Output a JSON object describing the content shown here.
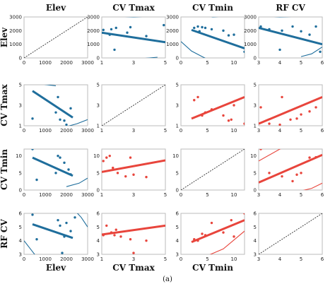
{
  "variables": [
    "Elev",
    "CV Tmax",
    "CV Tmin",
    "RF CV"
  ],
  "caption": "(a)",
  "colors": {
    "blue": "#1f6e9c",
    "red": "#e8453c",
    "diagonal": "#333333"
  },
  "axes": {
    "Elev": {
      "range": [
        0,
        3000
      ],
      "ticks": [
        0,
        1000,
        2000,
        3000
      ]
    },
    "CV Tmax": {
      "range": [
        1,
        5
      ],
      "ticks": [
        1,
        3,
        5
      ]
    },
    "CV Tmin": {
      "range": [
        0,
        12
      ],
      "ticks": [
        0,
        5,
        10
      ]
    },
    "RF CV": {
      "range": [
        3,
        6
      ],
      "ticks": [
        3,
        4,
        5,
        6
      ]
    }
  },
  "chart_data": {
    "type": "scatter",
    "layout": "scatterplot-matrix",
    "panels": [
      {
        "row": 0,
        "col": 0,
        "kind": "diagonal"
      },
      {
        "row": 0,
        "col": 1,
        "color": "blue",
        "points": [
          [
            1.1,
            2050
          ],
          [
            1.5,
            1700
          ],
          [
            1.6,
            2100
          ],
          [
            1.9,
            2200
          ],
          [
            2.6,
            1850
          ],
          [
            2.8,
            2250
          ],
          [
            3.8,
            1600
          ],
          [
            4.9,
            2400
          ],
          [
            1.8,
            600
          ]
        ],
        "fit": [
          [
            1,
            1850
          ],
          [
            5,
            1150
          ]
        ],
        "band_upper": [
          [
            1,
            3150
          ],
          [
            2,
            3050
          ],
          [
            3,
            3000
          ],
          [
            4,
            3050
          ],
          [
            5,
            3150
          ]
        ],
        "band_lower": [
          [
            2.5,
            -150
          ],
          [
            3.5,
            -50
          ],
          [
            4.5,
            50
          ]
        ]
      },
      {
        "row": 0,
        "col": 2,
        "color": "blue",
        "points": [
          [
            2.5,
            2200
          ],
          [
            3.2,
            2300
          ],
          [
            4,
            2250
          ],
          [
            4.6,
            2200
          ],
          [
            5.8,
            2100
          ],
          [
            8,
            2000
          ],
          [
            9,
            1650
          ],
          [
            10,
            1700
          ],
          [
            12,
            450
          ],
          [
            3.5,
            1950
          ]
        ],
        "fit": [
          [
            2,
            2050
          ],
          [
            12,
            700
          ]
        ],
        "band_upper": [
          [
            4,
            3200
          ],
          [
            6,
            3000
          ],
          [
            8,
            3050
          ],
          [
            10,
            3200
          ]
        ],
        "band_lower": [
          [
            0,
            1200
          ],
          [
            2,
            500
          ],
          [
            4,
            100
          ],
          [
            5,
            -100
          ]
        ]
      },
      {
        "row": 0,
        "col": 3,
        "color": "blue",
        "points": [
          [
            3.1,
            2300
          ],
          [
            3.5,
            2100
          ],
          [
            4.1,
            2000
          ],
          [
            4.6,
            2300
          ],
          [
            5,
            1950
          ],
          [
            5.4,
            1700
          ],
          [
            5.7,
            2300
          ],
          [
            4,
            600
          ],
          [
            5.9,
            450
          ]
        ],
        "fit": [
          [
            3,
            2200
          ],
          [
            6,
            1000
          ]
        ],
        "band_upper": [
          [
            3,
            3100
          ],
          [
            4,
            3000
          ],
          [
            5,
            3050
          ],
          [
            6,
            3200
          ]
        ],
        "band_lower": [
          [
            5,
            100
          ],
          [
            5.5,
            300
          ],
          [
            6,
            800
          ]
        ]
      },
      {
        "row": 1,
        "col": 0,
        "color": "blue",
        "points": [
          [
            400,
            1.7
          ],
          [
            1600,
            3.8
          ],
          [
            1700,
            1.6
          ],
          [
            1900,
            1.5
          ],
          [
            2200,
            2.7
          ],
          [
            2000,
            1.1
          ],
          [
            1500,
            2.3
          ]
        ],
        "fit": [
          [
            400,
            4.4
          ],
          [
            2300,
            1.8
          ]
        ],
        "band_upper": [
          [
            0,
            5.6
          ],
          [
            700,
            5.1
          ],
          [
            1500,
            4.9
          ]
        ],
        "band_lower": [
          [
            1800,
            0.8
          ],
          [
            2500,
            1.2
          ],
          [
            3000,
            1.6
          ]
        ]
      },
      {
        "row": 1,
        "col": 1,
        "kind": "diagonal"
      },
      {
        "row": 1,
        "col": 2,
        "color": "red",
        "points": [
          [
            2.5,
            3.5
          ],
          [
            3.2,
            3.8
          ],
          [
            4,
            2
          ],
          [
            4.6,
            2.3
          ],
          [
            5.8,
            2.6
          ],
          [
            8,
            2
          ],
          [
            9,
            1.5
          ],
          [
            9.5,
            1.6
          ],
          [
            10,
            3
          ],
          [
            12,
            1.2
          ]
        ],
        "fit": [
          [
            2,
            1.7
          ],
          [
            12,
            3.8
          ]
        ]
      },
      {
        "row": 1,
        "col": 3,
        "color": "red",
        "points": [
          [
            3.1,
            2.8
          ],
          [
            3.5,
            1.2
          ],
          [
            4.1,
            3.8
          ],
          [
            4.5,
            1.6
          ],
          [
            4.8,
            1.7
          ],
          [
            5,
            2.1
          ],
          [
            5.4,
            2.4
          ],
          [
            5.7,
            2.8
          ],
          [
            4,
            1.1
          ]
        ],
        "fit": [
          [
            3,
            1.2
          ],
          [
            6,
            3.8
          ]
        ]
      },
      {
        "row": 2,
        "col": 0,
        "color": "blue",
        "points": [
          [
            400,
            12
          ],
          [
            1600,
            10
          ],
          [
            1700,
            9.5
          ],
          [
            1900,
            8
          ],
          [
            2100,
            6
          ],
          [
            2200,
            4.6
          ],
          [
            1500,
            5
          ],
          [
            600,
            3
          ]
        ],
        "fit": [
          [
            400,
            9.5
          ],
          [
            2300,
            4.2
          ]
        ],
        "band_upper": [
          [
            0,
            12.5
          ],
          [
            500,
            13
          ],
          [
            800,
            14
          ]
        ],
        "band_lower": [
          [
            2000,
            1
          ],
          [
            2600,
            2
          ],
          [
            3000,
            3.5
          ]
        ]
      },
      {
        "row": 2,
        "col": 1,
        "color": "red",
        "points": [
          [
            1.1,
            8.5
          ],
          [
            1.3,
            9.5
          ],
          [
            1.5,
            10
          ],
          [
            1.7,
            6.5
          ],
          [
            2,
            5
          ],
          [
            2.5,
            4
          ],
          [
            2.8,
            9.5
          ],
          [
            3,
            4.5
          ],
          [
            3.8,
            3.8
          ]
        ],
        "fit": [
          [
            1,
            5.3
          ],
          [
            5,
            8.7
          ]
        ]
      },
      {
        "row": 2,
        "col": 2,
        "kind": "diagonal"
      },
      {
        "row": 2,
        "col": 3,
        "color": "red",
        "points": [
          [
            3.1,
            12
          ],
          [
            3.5,
            5
          ],
          [
            4.1,
            4
          ],
          [
            4.6,
            2.6
          ],
          [
            5,
            5
          ],
          [
            5.4,
            9.5
          ],
          [
            5.7,
            9.6
          ],
          [
            5.9,
            12.5
          ],
          [
            4.8,
            4.5
          ]
        ],
        "fit": [
          [
            3,
            2.2
          ],
          [
            6,
            10.3
          ]
        ],
        "band_upper": [
          [
            3,
            8.5
          ],
          [
            4,
            12
          ],
          [
            5,
            14
          ],
          [
            6,
            14.5
          ]
        ],
        "band_lower": [
          [
            4.5,
            -1
          ],
          [
            5.5,
            0.5
          ],
          [
            6,
            2
          ]
        ]
      },
      {
        "row": 3,
        "col": 0,
        "color": "blue",
        "points": [
          [
            400,
            5.9
          ],
          [
            600,
            4.1
          ],
          [
            1600,
            5.5
          ],
          [
            1700,
            5.1
          ],
          [
            1900,
            4.3
          ],
          [
            2000,
            5.3
          ],
          [
            2200,
            4.7
          ],
          [
            1800,
            3.1
          ],
          [
            2400,
            5.7
          ]
        ],
        "fit": [
          [
            400,
            5.2
          ],
          [
            2300,
            4.2
          ]
        ],
        "band_upper": [
          [
            2400,
            6.2
          ],
          [
            2700,
            5.7
          ],
          [
            3000,
            5
          ]
        ],
        "band_lower": [
          [
            0,
            4
          ],
          [
            300,
            3.4
          ],
          [
            600,
            2.8
          ]
        ]
      },
      {
        "row": 3,
        "col": 1,
        "color": "red",
        "points": [
          [
            1.1,
            4.4
          ],
          [
            1.3,
            5.1
          ],
          [
            1.6,
            4.6
          ],
          [
            1.8,
            4.4
          ],
          [
            1.9,
            4.8
          ],
          [
            2.2,
            4.3
          ],
          [
            2.8,
            4.1
          ],
          [
            3.8,
            4
          ],
          [
            3,
            3.1
          ]
        ],
        "fit": [
          [
            1,
            4.45
          ],
          [
            5,
            5.1
          ]
        ]
      },
      {
        "row": 3,
        "col": 2,
        "color": "red",
        "points": [
          [
            2.5,
            4.1
          ],
          [
            3.2,
            4
          ],
          [
            4,
            4.5
          ],
          [
            4.6,
            4.4
          ],
          [
            5.8,
            5.3
          ],
          [
            8,
            4.6
          ],
          [
            9.5,
            5.5
          ],
          [
            10,
            4.3
          ],
          [
            12,
            6
          ]
        ],
        "fit": [
          [
            2,
            3.9
          ],
          [
            12,
            5.5
          ]
        ],
        "band_upper": [
          [
            6,
            6.2
          ],
          [
            9,
            6.1
          ],
          [
            12,
            6.4
          ]
        ],
        "band_lower": [
          [
            5,
            2.9
          ],
          [
            8,
            3.4
          ],
          [
            12,
            4.7
          ]
        ]
      },
      {
        "row": 3,
        "col": 3,
        "kind": "diagonal"
      }
    ]
  }
}
